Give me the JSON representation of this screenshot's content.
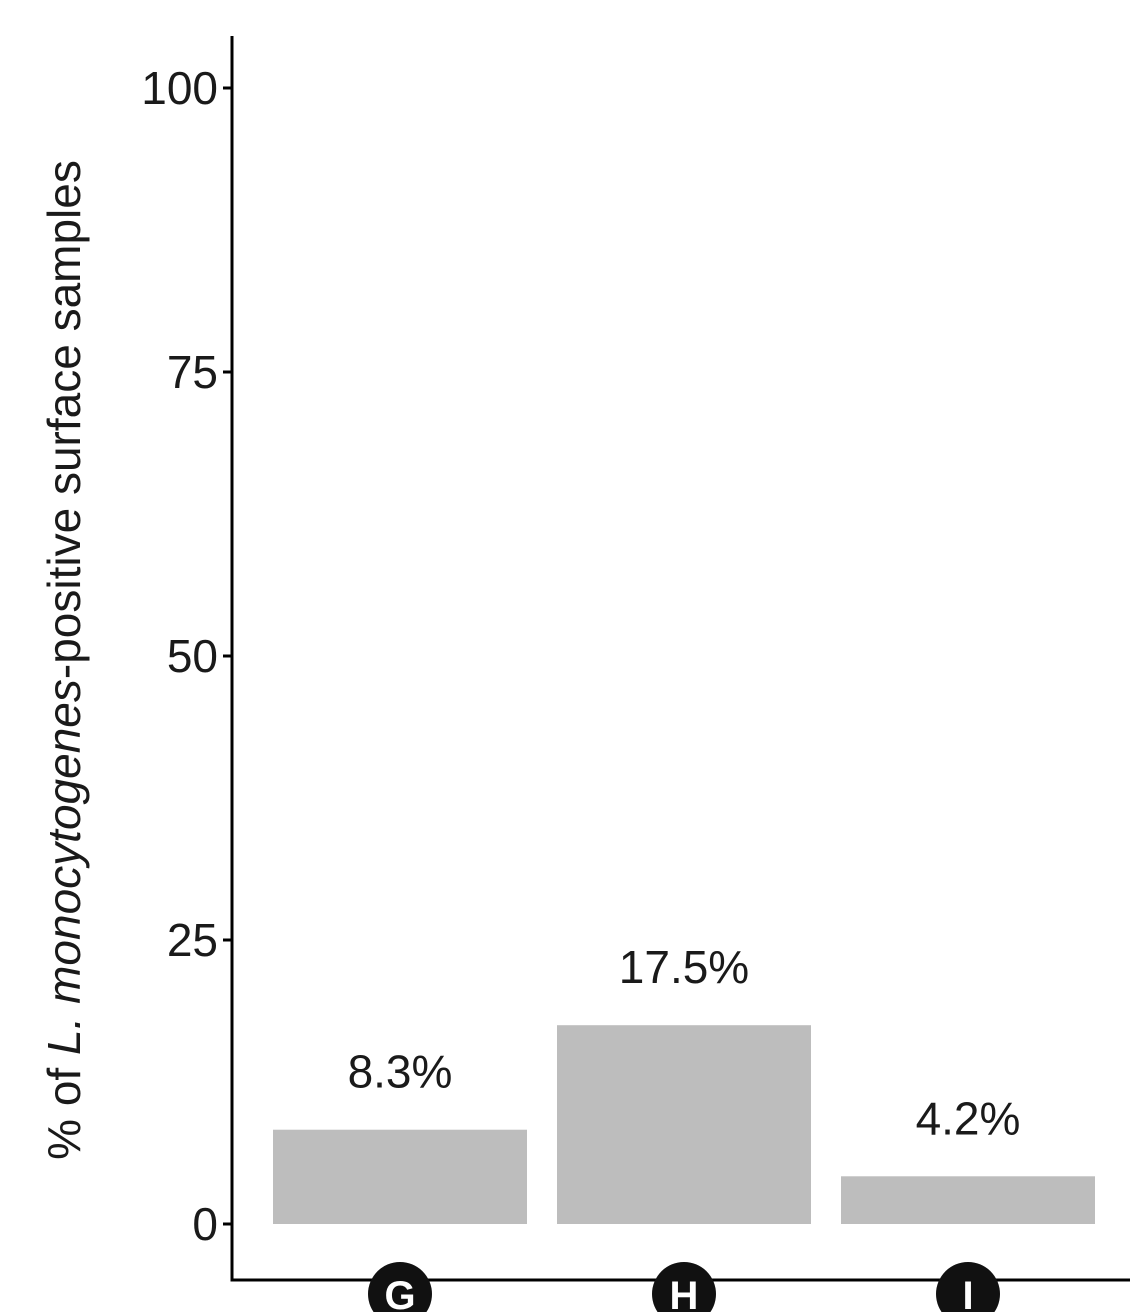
{
  "chart_data": {
    "type": "bar",
    "categories": [
      "G",
      "H",
      "I"
    ],
    "values": [
      8.3,
      17.5,
      4.2
    ],
    "data_labels": [
      "8.3%",
      "17.5%",
      "4.2%"
    ],
    "ylabel": {
      "prefix": "% of ",
      "italic": "L. monocytogenes",
      "suffix": "-positive surface samples"
    },
    "y_ticks": [
      0,
      25,
      50,
      75,
      100
    ],
    "ylim": [
      0,
      104
    ],
    "grid": false,
    "legend": "none",
    "category_marker": "black-circle",
    "colors": {
      "bar": "#bdbdbd",
      "axis": "#000000",
      "text": "#1a1a1a",
      "marker": "#111111",
      "marker_text": "#ffffff"
    }
  }
}
